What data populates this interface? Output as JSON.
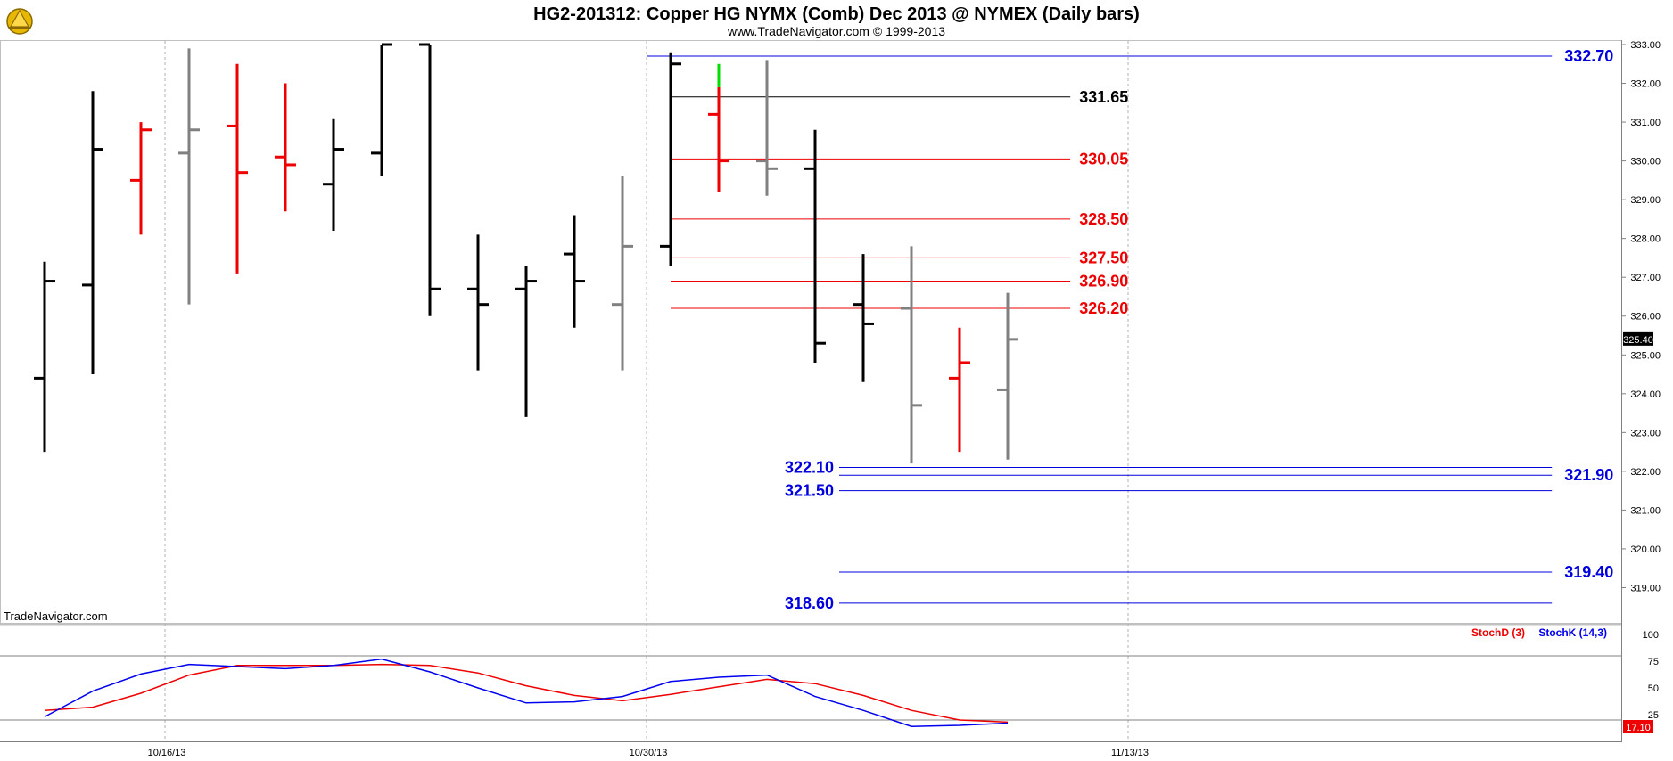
{
  "header": {
    "title": "HG2-201312:  Copper HG NYMX (Comb) Dec 2013 @ NYMEX  (Daily bars)",
    "subtitle": "www.TradeNavigator.com © 1999-2013"
  },
  "watermark": "TradeNavigator.com",
  "colors": {
    "black_bar": "#000000",
    "red_bar": "#ee0000",
    "gray_bar": "#808080",
    "green_tick": "#00dd00",
    "blue_level": "#0000dd",
    "red_level": "#ee0000",
    "black_level": "#000000",
    "stoch_d": "#ee0000",
    "stoch_k": "#0000ee"
  },
  "chart_data": [
    {
      "type": "ohlc",
      "title": "HG2-201312:  Copper HG NYMX (Comb) Dec 2013 @ NYMEX  (Daily bars)",
      "ylim": [
        318.0,
        333.0
      ],
      "yticks": [
        "333.00",
        "332.00",
        "331.00",
        "330.00",
        "329.00",
        "328.00",
        "327.00",
        "326.00",
        "325.00",
        "324.00",
        "323.00",
        "322.00",
        "321.00",
        "320.00",
        "319.00"
      ],
      "xticks": [
        {
          "label": "10/16/13",
          "bar_index": 3
        },
        {
          "label": "10/30/13",
          "bar_index": 13
        },
        {
          "label": "11/13/13",
          "bar_index": 23
        }
      ],
      "n_slots": 34,
      "last_price": "325.40",
      "bars": [
        {
          "o": 324.4,
          "h": 327.4,
          "l": 322.5,
          "c": 326.9,
          "color": "black"
        },
        {
          "o": 326.8,
          "h": 331.8,
          "l": 324.5,
          "c": 330.3,
          "color": "black"
        },
        {
          "o": 329.5,
          "h": 331.0,
          "l": 328.1,
          "c": 330.8,
          "color": "red"
        },
        {
          "o": 330.2,
          "h": 332.9,
          "l": 326.3,
          "c": 330.8,
          "color": "gray"
        },
        {
          "o": 330.9,
          "h": 332.5,
          "l": 327.1,
          "c": 329.7,
          "color": "red"
        },
        {
          "o": 330.1,
          "h": 332.0,
          "l": 328.7,
          "c": 329.9,
          "color": "red"
        },
        {
          "o": 329.4,
          "h": 331.1,
          "l": 328.2,
          "c": 330.3,
          "color": "black"
        },
        {
          "o": 330.2,
          "h": 333.0,
          "l": 329.6,
          "c": 333.0,
          "color": "black"
        },
        {
          "o": 333.0,
          "h": 333.0,
          "l": 326.0,
          "c": 326.7,
          "color": "black"
        },
        {
          "o": 326.7,
          "h": 328.1,
          "l": 324.6,
          "c": 326.3,
          "color": "black"
        },
        {
          "o": 326.7,
          "h": 327.3,
          "l": 323.4,
          "c": 326.9,
          "color": "black"
        },
        {
          "o": 327.6,
          "h": 328.6,
          "l": 325.7,
          "c": 326.9,
          "color": "black"
        },
        {
          "o": 326.3,
          "h": 329.6,
          "l": 324.6,
          "c": 327.8,
          "color": "gray"
        },
        {
          "o": 327.8,
          "h": 332.8,
          "l": 327.3,
          "c": 332.5,
          "color": "black"
        },
        {
          "o": 331.2,
          "h": 331.9,
          "l": 329.2,
          "c": 330.0,
          "color": "red",
          "green_high": 332.5
        },
        {
          "o": 330.0,
          "h": 332.6,
          "l": 329.1,
          "c": 329.8,
          "color": "gray"
        },
        {
          "o": 329.8,
          "h": 330.8,
          "l": 324.8,
          "c": 325.3,
          "color": "black"
        },
        {
          "o": 326.3,
          "h": 327.6,
          "l": 324.3,
          "c": 325.8,
          "color": "black"
        },
        {
          "o": 326.2,
          "h": 327.8,
          "l": 322.2,
          "c": 323.7,
          "color": "gray"
        },
        {
          "o": 324.4,
          "h": 325.7,
          "l": 322.5,
          "c": 324.8,
          "color": "red"
        },
        {
          "o": 324.1,
          "h": 326.6,
          "l": 322.3,
          "c": 325.4,
          "color": "gray"
        }
      ],
      "levels": [
        {
          "value": 332.7,
          "label": "332.70",
          "color": "blue",
          "from_index": 12.5,
          "to_index": 31.3,
          "label_side": "right"
        },
        {
          "value": 331.65,
          "label": "331.65",
          "color": "black",
          "from_index": 13,
          "to_index": 21.3,
          "label_side": "end"
        },
        {
          "value": 330.05,
          "label": "330.05",
          "color": "red",
          "from_index": 13,
          "to_index": 21.3,
          "label_side": "end"
        },
        {
          "value": 328.5,
          "label": "328.50",
          "color": "red",
          "from_index": 13,
          "to_index": 21.3,
          "label_side": "end"
        },
        {
          "value": 327.5,
          "label": "327.50",
          "color": "red",
          "from_index": 13,
          "to_index": 21.3,
          "label_side": "end"
        },
        {
          "value": 326.9,
          "label": "326.90",
          "color": "red",
          "from_index": 13,
          "to_index": 21.3,
          "label_side": "end"
        },
        {
          "value": 326.2,
          "label": "326.20",
          "color": "red",
          "from_index": 13,
          "to_index": 21.3,
          "label_side": "end"
        },
        {
          "value": 322.1,
          "label": "322.10",
          "color": "blue",
          "from_index": 16.5,
          "to_index": 31.3,
          "label_side": "left"
        },
        {
          "value": 321.9,
          "label": "321.90",
          "color": "blue",
          "from_index": 16.5,
          "to_index": 31.3,
          "label_side": "right"
        },
        {
          "value": 321.5,
          "label": "321.50",
          "color": "blue",
          "from_index": 16.5,
          "to_index": 31.3,
          "label_side": "left"
        },
        {
          "value": 319.4,
          "label": "319.40",
          "color": "blue",
          "from_index": 16.5,
          "to_index": 31.3,
          "label_side": "right"
        },
        {
          "value": 318.6,
          "label": "318.60",
          "color": "blue",
          "from_index": 16.5,
          "to_index": 31.3,
          "label_side": "left"
        }
      ]
    },
    {
      "type": "line",
      "ylim": [
        0,
        110
      ],
      "yticks": [
        "100",
        "75",
        "50",
        "25"
      ],
      "ref_lines": [
        80,
        20
      ],
      "last_value": "17.10",
      "legend": {
        "position": "top-right"
      },
      "series": [
        {
          "name": "StochD (3)",
          "color": "red",
          "values": [
            29,
            32,
            45,
            62,
            71,
            71,
            71,
            72,
            71,
            64,
            52,
            43,
            38,
            44,
            51,
            58,
            54,
            43,
            29,
            20,
            18
          ]
        },
        {
          "name": "StochK (14,3)",
          "color": "blue",
          "values": [
            23,
            47,
            63,
            72,
            70,
            68,
            71,
            77,
            65,
            50,
            36,
            37,
            42,
            56,
            60,
            62,
            42,
            29,
            14,
            15,
            17.1
          ]
        }
      ]
    }
  ]
}
